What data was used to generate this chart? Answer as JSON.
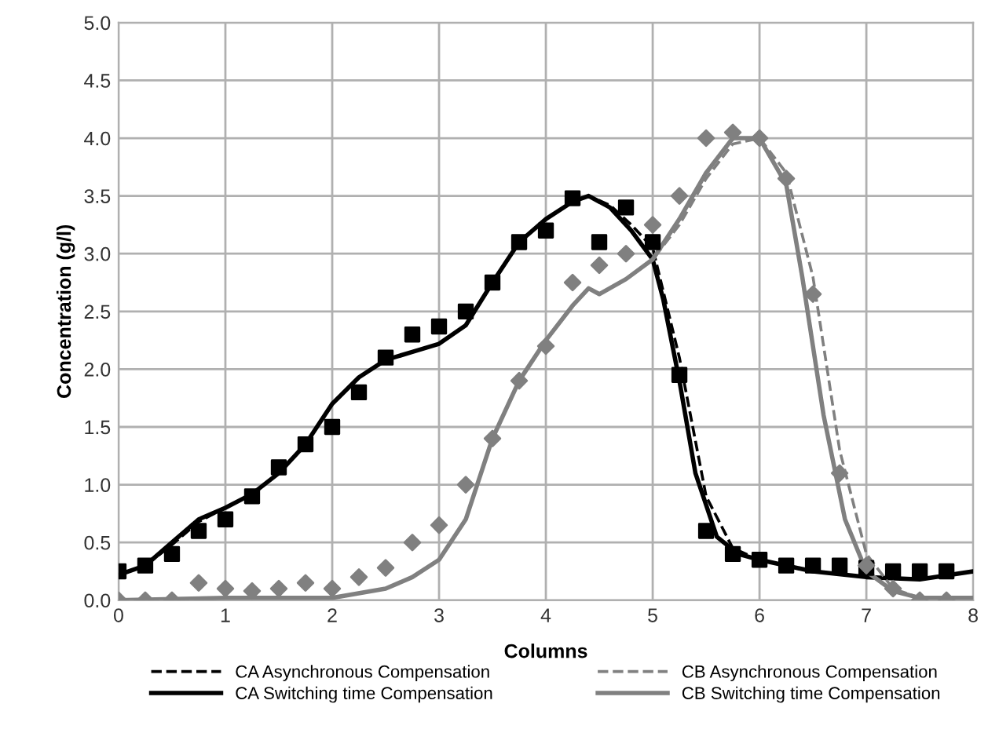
{
  "chart_data": {
    "type": "line",
    "xlabel": "Columns",
    "ylabel": "Concentration (g/l)",
    "xlim": [
      0,
      8
    ],
    "ylim": [
      0,
      5
    ],
    "xticks": [
      0,
      1,
      2,
      3,
      4,
      5,
      6,
      7,
      8
    ],
    "yticks": [
      {
        "value": 0,
        "label": "0.0"
      },
      {
        "value": 0.5,
        "label": "0.5"
      },
      {
        "value": 1,
        "label": "1.0"
      },
      {
        "value": 1.5,
        "label": "1.5"
      },
      {
        "value": 2,
        "label": "2.0"
      },
      {
        "value": 2.5,
        "label": "2.5"
      },
      {
        "value": 3,
        "label": "3.0"
      },
      {
        "value": 3.5,
        "label": "3.5"
      },
      {
        "value": 4,
        "label": "4.0"
      },
      {
        "value": 4.5,
        "label": "4.5"
      },
      {
        "value": 5,
        "label": "5.0"
      }
    ],
    "grid": true,
    "legend": "bottom",
    "series": [
      {
        "name": "CA Asynchronous Compensation",
        "color": "#000000",
        "line_style": "dashed",
        "marker": "none",
        "x": [
          0,
          0.25,
          0.5,
          0.75,
          1,
          1.25,
          1.5,
          1.75,
          2,
          2.25,
          2.5,
          2.75,
          3,
          3.25,
          3.5,
          3.75,
          4,
          4.25,
          4.4,
          4.6,
          4.8,
          5,
          5.25,
          5.5,
          5.75,
          6,
          6.5,
          7,
          7.5,
          8
        ],
        "values": [
          0.22,
          0.3,
          0.48,
          0.68,
          0.8,
          0.92,
          1.1,
          1.35,
          1.7,
          1.93,
          2.08,
          2.15,
          2.22,
          2.38,
          2.75,
          3.1,
          3.3,
          3.45,
          3.5,
          3.42,
          3.25,
          3.05,
          2.1,
          0.9,
          0.45,
          0.35,
          0.25,
          0.2,
          0.18,
          0.25
        ]
      },
      {
        "name": "CA Switching time Compensation",
        "color": "#000000",
        "line_style": "solid",
        "marker": "none",
        "x": [
          0,
          0.25,
          0.5,
          0.75,
          1,
          1.25,
          1.5,
          1.75,
          2,
          2.25,
          2.5,
          2.75,
          3,
          3.25,
          3.5,
          3.75,
          4,
          4.25,
          4.4,
          4.6,
          4.8,
          5,
          5.1,
          5.25,
          5.4,
          5.6,
          5.8,
          6,
          6.5,
          7,
          7.5,
          8
        ],
        "values": [
          0.22,
          0.3,
          0.5,
          0.7,
          0.8,
          0.92,
          1.1,
          1.35,
          1.7,
          1.93,
          2.08,
          2.15,
          2.22,
          2.38,
          2.75,
          3.1,
          3.3,
          3.45,
          3.5,
          3.4,
          3.2,
          2.95,
          2.6,
          1.9,
          1.1,
          0.55,
          0.4,
          0.35,
          0.25,
          0.2,
          0.18,
          0.25
        ]
      },
      {
        "name": "CB Asynchronous Compensation",
        "color": "#808080",
        "line_style": "dashed",
        "marker": "none",
        "x": [
          0,
          1,
          2,
          2.5,
          2.75,
          3,
          3.25,
          3.5,
          3.75,
          4,
          4.25,
          4.4,
          4.5,
          4.75,
          5,
          5.25,
          5.5,
          5.75,
          6,
          6.25,
          6.5,
          6.75,
          7,
          7.25,
          7.5,
          8
        ],
        "values": [
          0,
          0.02,
          0.02,
          0.1,
          0.2,
          0.35,
          0.7,
          1.4,
          1.9,
          2.25,
          2.55,
          2.7,
          2.65,
          2.78,
          2.95,
          3.25,
          3.65,
          3.95,
          4.0,
          3.7,
          2.8,
          1.3,
          0.4,
          0.1,
          0.02,
          0.02
        ]
      },
      {
        "name": "CB Switching time Compensation",
        "color": "#808080",
        "line_style": "solid",
        "marker": "none",
        "x": [
          0,
          1,
          2,
          2.5,
          2.75,
          3,
          3.25,
          3.5,
          3.75,
          4,
          4.25,
          4.4,
          4.5,
          4.75,
          5,
          5.25,
          5.5,
          5.75,
          6,
          6.25,
          6.4,
          6.6,
          6.8,
          7,
          7.25,
          7.5,
          8
        ],
        "values": [
          0,
          0.02,
          0.02,
          0.1,
          0.2,
          0.35,
          0.7,
          1.4,
          1.9,
          2.25,
          2.55,
          2.7,
          2.65,
          2.78,
          2.95,
          3.3,
          3.7,
          4.0,
          4.0,
          3.6,
          2.8,
          1.6,
          0.7,
          0.25,
          0.08,
          0.02,
          0.02
        ]
      },
      {
        "type": "scatter",
        "color": "#000000",
        "marker": "square",
        "x": [
          0,
          0.25,
          0.5,
          0.75,
          1,
          1.25,
          1.5,
          1.75,
          2,
          2.25,
          2.5,
          2.75,
          3,
          3.25,
          3.5,
          3.75,
          4,
          4.25,
          4.5,
          4.75,
          5,
          5.25,
          5.5,
          5.75,
          6,
          6.25,
          6.5,
          6.75,
          7,
          7.25,
          7.5,
          7.75
        ],
        "values": [
          0.25,
          0.3,
          0.4,
          0.6,
          0.7,
          0.9,
          1.15,
          1.35,
          1.5,
          1.8,
          2.1,
          2.3,
          2.37,
          2.5,
          2.75,
          3.1,
          3.2,
          3.48,
          3.1,
          3.4,
          3.1,
          1.95,
          0.6,
          0.4,
          0.35,
          0.3,
          0.3,
          0.3,
          0.28,
          0.25,
          0.25,
          0.25
        ]
      },
      {
        "type": "scatter",
        "color": "#808080",
        "marker": "diamond",
        "x": [
          0,
          0.25,
          0.5,
          0.75,
          1,
          1.25,
          1.5,
          1.75,
          2,
          2.25,
          2.5,
          2.75,
          3,
          3.25,
          3.5,
          3.75,
          4,
          4.25,
          4.5,
          4.75,
          5,
          5.25,
          5.5,
          5.75,
          6,
          6.25,
          6.5,
          6.75,
          7,
          7.25,
          7.5,
          7.75
        ],
        "values": [
          0,
          0,
          0,
          0.15,
          0.1,
          0.08,
          0.1,
          0.15,
          0.1,
          0.2,
          0.28,
          0.5,
          0.65,
          1.0,
          1.4,
          1.9,
          2.2,
          2.75,
          2.9,
          3.0,
          3.25,
          3.5,
          4.0,
          4.05,
          4.0,
          3.65,
          2.65,
          1.1,
          0.3,
          0.1,
          0,
          0
        ]
      }
    ]
  }
}
